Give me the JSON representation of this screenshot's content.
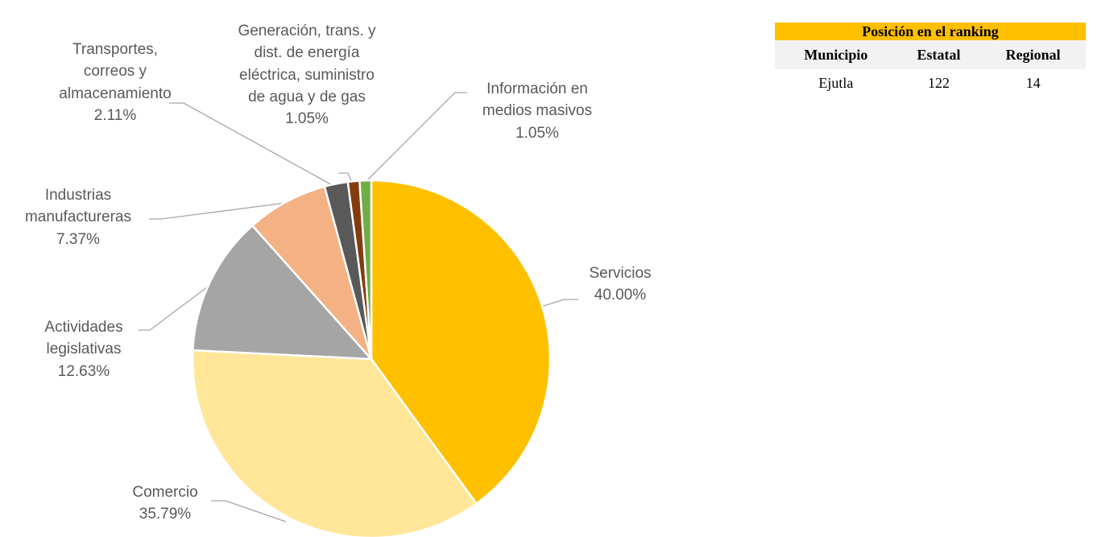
{
  "chart_data": {
    "type": "pie",
    "categories": [
      "Servicios",
      "Comercio",
      "Actividades legislativas",
      "Industrias manufactureras",
      "Transportes, correos y almacenamiento",
      "Generación, trans. y dist. de energía eléctrica, suministro de agua y de gas",
      "Información en medios masivos"
    ],
    "values": [
      40.0,
      35.79,
      12.63,
      7.37,
      2.11,
      1.05,
      1.05
    ],
    "value_labels": [
      "40.00%",
      "35.79%",
      "12.63%",
      "7.37%",
      "2.11%",
      "1.05%",
      "1.05%"
    ],
    "colors": [
      "#FFC000",
      "#FFE699",
      "#A5A5A5",
      "#F4B183",
      "#595959",
      "#843C0C",
      "#70AD47"
    ]
  },
  "table": {
    "title": "Posición en el ranking",
    "columns": [
      "Municipio",
      "Estatal",
      "Regional"
    ],
    "rows": [
      [
        "Ejutla",
        122,
        14
      ]
    ]
  }
}
